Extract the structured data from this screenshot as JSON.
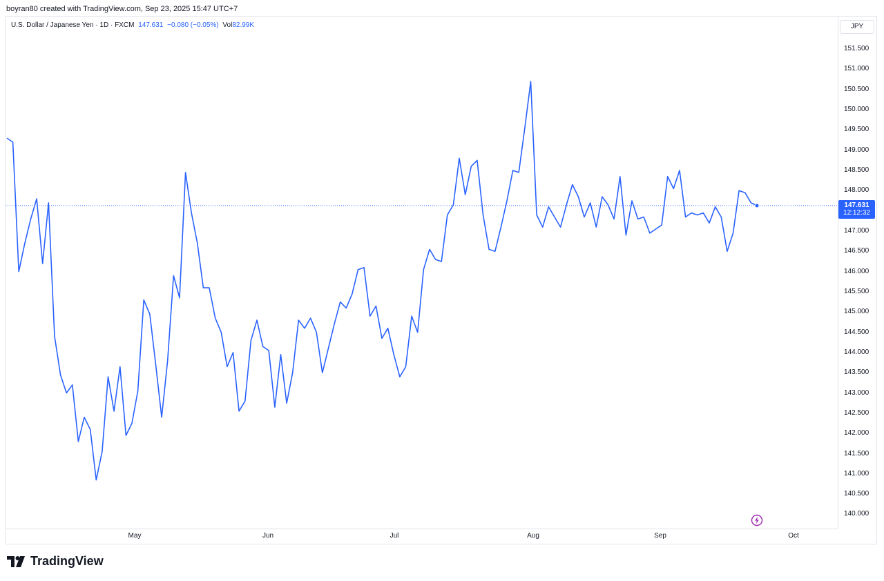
{
  "header": {
    "attribution": "boyran80 created with TradingView.com, Sep 23, 2025 15:47 UTC+7"
  },
  "legend": {
    "symbol": "U.S. Dollar / Japanese Yen · 1D · FXCM",
    "price": "147.631",
    "change": "−0.080 (−0.05%)",
    "vol_label": "Vol",
    "vol_value": "82.99K"
  },
  "currency_button": "JPY",
  "last_price_tag": {
    "price": "147.631",
    "countdown": "12:12:32"
  },
  "logo_text": "TradingView",
  "colors": {
    "line": "#2962ff",
    "tag": "#2962ff",
    "grid_border": "#e0e3eb",
    "text": "#131722",
    "bolt": "#9c27b0"
  },
  "icons": {
    "bolt": "lightning-bolt-icon",
    "logo": "tradingview-logo-icon"
  },
  "chart_data": {
    "type": "line",
    "title": "U.S. Dollar / Japanese Yen · 1D · FXCM",
    "xlabel": "",
    "ylabel": "",
    "grid": false,
    "ylim": [
      139.65,
      152.32
    ],
    "y_ticks": [
      "151.500",
      "151.000",
      "150.500",
      "150.000",
      "149.500",
      "149.000",
      "148.500",
      "148.000",
      "147.500",
      "147.000",
      "146.500",
      "146.000",
      "145.500",
      "145.000",
      "144.500",
      "144.000",
      "143.500",
      "143.000",
      "142.500",
      "142.000",
      "141.500",
      "141.000",
      "140.500",
      "140.000"
    ],
    "x_ticks": [
      "May",
      "Jun",
      "Jul",
      "Aug",
      "Sep",
      "Oct"
    ],
    "last_value": 147.631,
    "series": [
      {
        "values": [
          149.3,
          149.2,
          146.0,
          146.7,
          147.3,
          147.8,
          146.2,
          147.7,
          144.4,
          143.45,
          143.0,
          143.2,
          141.8,
          142.4,
          142.1,
          140.85,
          141.55,
          143.4,
          142.55,
          143.65,
          141.95,
          142.25,
          143.05,
          145.3,
          144.95,
          143.7,
          142.4,
          143.8,
          145.9,
          145.35,
          148.45,
          147.45,
          146.7,
          145.6,
          145.6,
          144.85,
          144.5,
          143.65,
          144.0,
          142.55,
          142.8,
          144.3,
          144.8,
          144.15,
          144.05,
          142.65,
          143.95,
          142.75,
          143.5,
          144.8,
          144.6,
          144.85,
          144.5,
          143.5,
          144.1,
          144.7,
          145.25,
          145.1,
          145.45,
          146.05,
          146.1,
          144.9,
          145.15,
          144.35,
          144.6,
          143.95,
          143.4,
          143.65,
          144.9,
          144.5,
          146.05,
          146.55,
          146.3,
          146.25,
          147.4,
          147.65,
          148.8,
          147.9,
          148.6,
          148.75,
          147.4,
          146.55,
          146.5,
          147.1,
          147.75,
          148.5,
          148.45,
          149.55,
          150.7,
          147.4,
          147.1,
          147.6,
          147.35,
          147.1,
          147.65,
          148.15,
          147.85,
          147.35,
          147.7,
          147.1,
          147.85,
          147.65,
          147.3,
          148.35,
          146.9,
          147.75,
          147.3,
          147.35,
          146.95,
          147.05,
          147.15,
          148.35,
          148.05,
          148.5,
          147.35,
          147.45,
          147.4,
          147.45,
          147.2,
          147.6,
          147.35,
          146.5,
          146.95,
          148.0,
          147.95,
          147.7,
          147.63
        ]
      }
    ]
  }
}
